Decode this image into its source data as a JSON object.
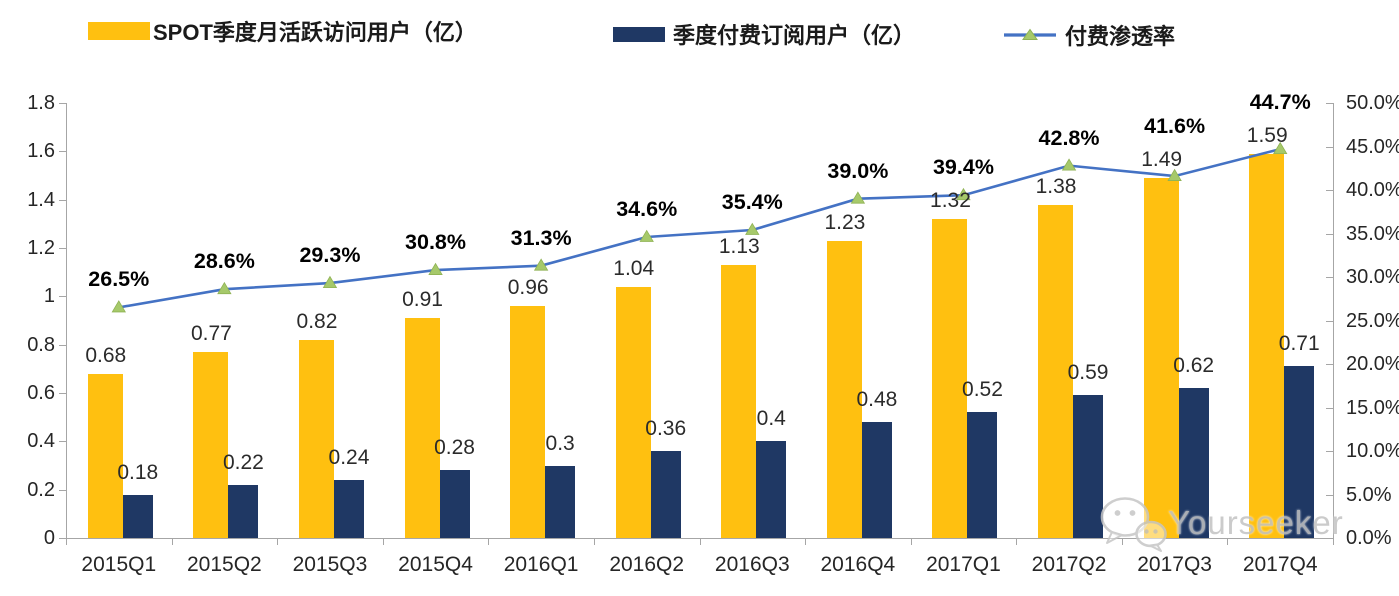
{
  "watermark": {
    "text": "Yourseeker",
    "icon": "wechat-chat-bubbles"
  },
  "colors": {
    "mau_bar": "#FFC010",
    "subs_bar": "#1F3864",
    "line": "#4472C4",
    "marker": "#A6C96A",
    "marker_edge": "#8FB254",
    "axis": "#A6A6A6",
    "label_text": "#2B2B2B"
  },
  "chart_data": {
    "type": "bar",
    "subtype": "combo-bar-line-dual-axis",
    "categories": [
      "2015Q1",
      "2015Q2",
      "2015Q3",
      "2015Q4",
      "2016Q1",
      "2016Q2",
      "2016Q3",
      "2016Q4",
      "2017Q1",
      "2017Q2",
      "2017Q3",
      "2017Q4"
    ],
    "series": [
      {
        "name": "SPOT季度月活跃访问用户（亿）",
        "type": "bar",
        "axis": "left",
        "color": "#FFC010",
        "values": [
          0.68,
          0.77,
          0.82,
          0.91,
          0.96,
          1.04,
          1.13,
          1.23,
          1.32,
          1.38,
          1.49,
          1.59
        ],
        "labels": [
          "0.68",
          "0.77",
          "0.82",
          "0.91",
          "0.96",
          "1.04",
          "1.13",
          "1.23",
          "1.32",
          "1.38",
          "1.49",
          "1.59"
        ]
      },
      {
        "name": "季度付费订阅用户（亿）",
        "type": "bar",
        "axis": "left",
        "color": "#1F3864",
        "values": [
          0.18,
          0.22,
          0.24,
          0.28,
          0.3,
          0.36,
          0.4,
          0.48,
          0.52,
          0.59,
          0.62,
          0.71
        ],
        "labels": [
          "0.18",
          "0.22",
          "0.24",
          "0.28",
          "0.3",
          "0.36",
          "0.4",
          "0.48",
          "0.52",
          "0.59",
          "0.62",
          "0.71"
        ]
      },
      {
        "name": "付费渗透率",
        "type": "line",
        "axis": "right",
        "color": "#4472C4",
        "marker": "triangle",
        "marker_color": "#A6C96A",
        "values": [
          26.5,
          28.6,
          29.3,
          30.8,
          31.3,
          34.6,
          35.4,
          39.0,
          39.4,
          42.8,
          41.6,
          44.7
        ],
        "labels": [
          "26.5%",
          "28.6%",
          "29.3%",
          "30.8%",
          "31.3%",
          "34.6%",
          "35.4%",
          "39.0%",
          "39.4%",
          "42.8%",
          "41.6%",
          "44.7%"
        ]
      }
    ],
    "left_axis": {
      "min": 0,
      "max": 1.8,
      "tick_values": [
        0,
        0.2,
        0.4,
        0.6,
        0.8,
        1,
        1.2,
        1.4,
        1.6,
        1.8
      ],
      "tick_labels": [
        "0",
        "0.2",
        "0.4",
        "0.6",
        "0.8",
        "1",
        "1.2",
        "1.4",
        "1.6",
        "1.8"
      ]
    },
    "right_axis": {
      "min": 0,
      "max": 50,
      "tick_values": [
        0,
        5,
        10,
        15,
        20,
        25,
        30,
        35,
        40,
        45,
        50
      ],
      "tick_labels": [
        "0.0%",
        "5.0%",
        "10.0%",
        "15.0%",
        "20.0%",
        "25.0%",
        "30.0%",
        "35.0%",
        "40.0%",
        "45.0%",
        "50.0%"
      ]
    },
    "grid": false,
    "legend_position": "top",
    "title": ""
  }
}
